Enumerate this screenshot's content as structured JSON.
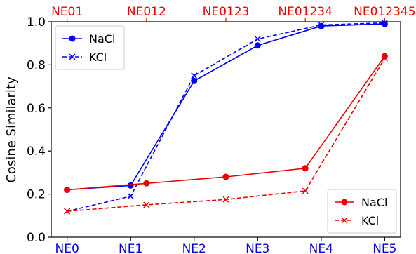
{
  "chart_data": {
    "type": "line",
    "ylabel": "Cosine Similarity",
    "ylim": [
      0.0,
      1.0
    ],
    "yticks": [
      "0.0",
      "0.2",
      "0.4",
      "0.6",
      "0.8",
      "1.0"
    ],
    "x_bottom_ticks": [
      "NE0",
      "NE1",
      "NE2",
      "NE3",
      "NE4",
      "NE5"
    ],
    "x_top_ticks": [
      "NE01",
      "NE012",
      "NE0123",
      "NE01234",
      "NE012345"
    ],
    "bottom_tick_color": "#0000ee",
    "top_tick_color": "#ee0000",
    "grid": false,
    "series": [
      {
        "name": "NaCl",
        "group": "blue",
        "color": "#0000ff",
        "style": "solid",
        "marker": "circle",
        "x": [
          0,
          1,
          2,
          3,
          4,
          5
        ],
        "values": [
          0.22,
          0.24,
          0.725,
          0.89,
          0.98,
          0.99
        ]
      },
      {
        "name": "KCl",
        "group": "blue",
        "color": "#0000ff",
        "style": "dashed",
        "marker": "x",
        "x": [
          0,
          1,
          2,
          3,
          4,
          5
        ],
        "values": [
          0.12,
          0.19,
          0.75,
          0.92,
          0.985,
          0.995
        ]
      },
      {
        "name": "NaCl",
        "group": "red",
        "color": "#ee0000",
        "style": "solid",
        "marker": "circle",
        "x": [
          0,
          1.25,
          2.5,
          3.75,
          5
        ],
        "values": [
          0.22,
          0.25,
          0.28,
          0.32,
          0.84
        ]
      },
      {
        "name": "KCl",
        "group": "red",
        "color": "#ee0000",
        "style": "dashed",
        "marker": "x",
        "x": [
          0,
          1.25,
          2.5,
          3.75,
          5
        ],
        "values": [
          0.12,
          0.15,
          0.175,
          0.215,
          0.83
        ]
      }
    ],
    "legends": [
      {
        "placement": "upper-left",
        "entries": [
          0,
          1
        ]
      },
      {
        "placement": "lower-right",
        "entries": [
          2,
          3
        ]
      }
    ]
  }
}
